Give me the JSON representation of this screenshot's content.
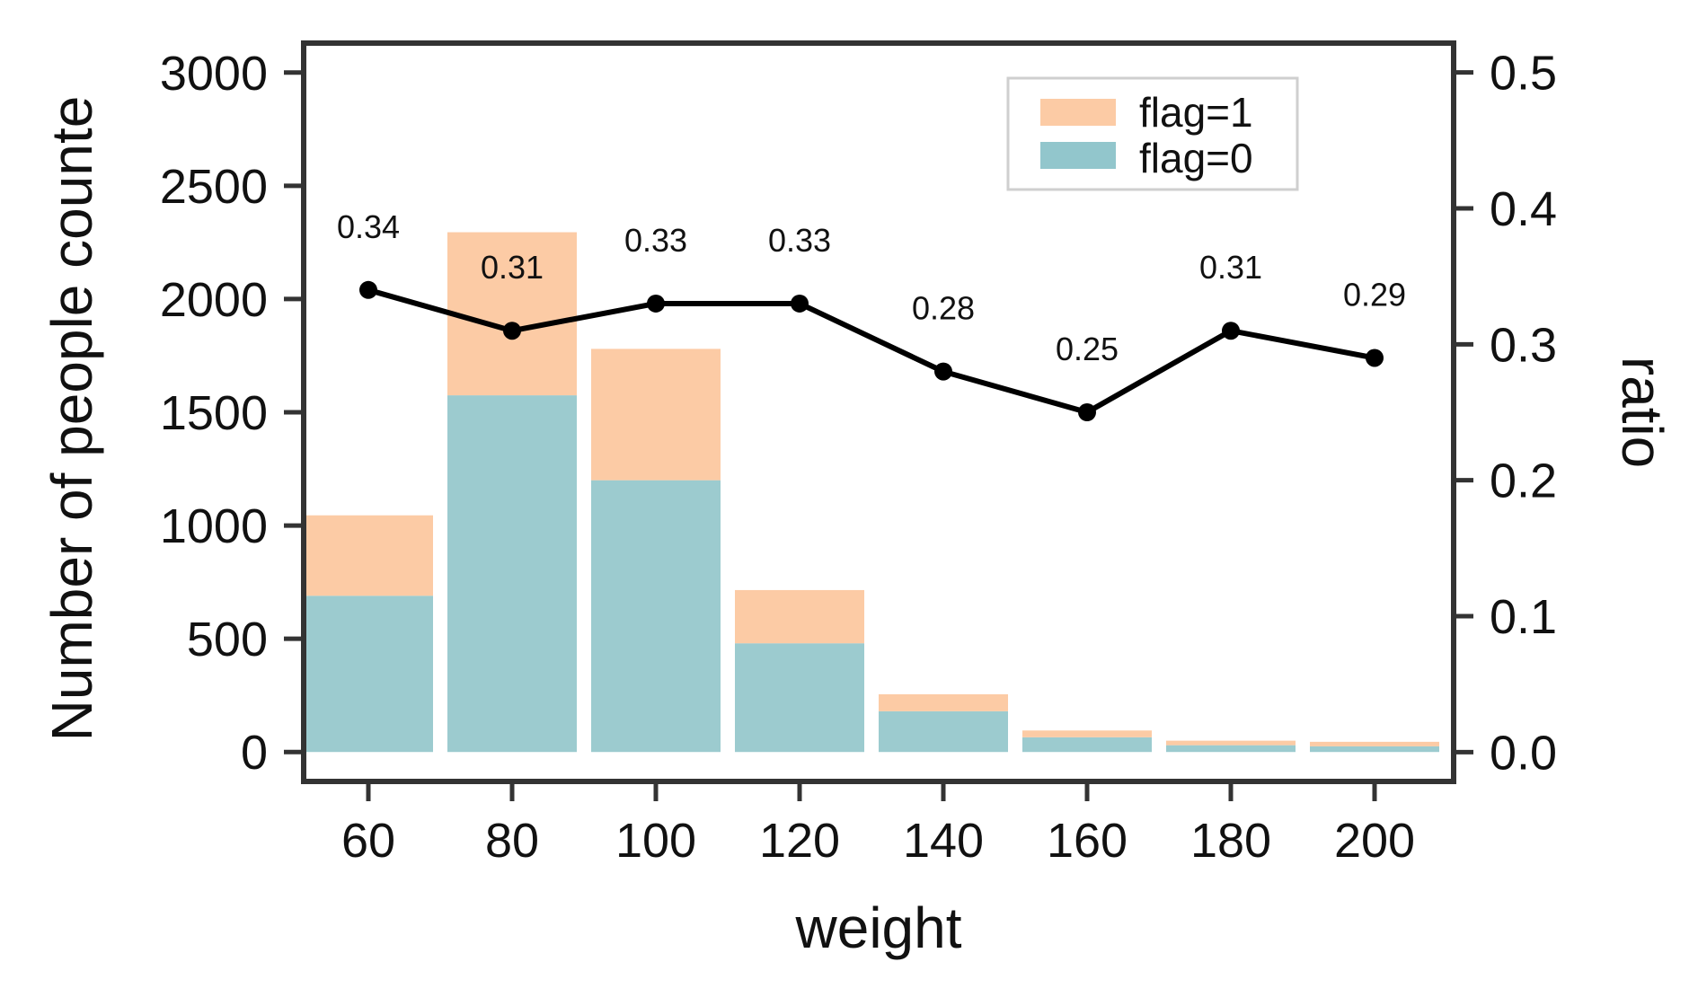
{
  "chart_data": {
    "type": "bar",
    "title": "",
    "xlabel": "weight",
    "ylabel": "Number of people counte",
    "y2label": "ratio",
    "categories": [
      "60",
      "80",
      "100",
      "120",
      "140",
      "160",
      "180",
      "200"
    ],
    "x": [
      60,
      80,
      100,
      120,
      140,
      160,
      180,
      200
    ],
    "stacked": true,
    "series": [
      {
        "name": "flag=0",
        "type": "bar",
        "axis": "left",
        "color": "#9ccbcf",
        "values": [
          690,
          1575,
          1200,
          480,
          180,
          65,
          30,
          25
        ]
      },
      {
        "name": "flag=1",
        "type": "bar",
        "axis": "left",
        "color": "#fccba5",
        "values": [
          355,
          720,
          580,
          235,
          75,
          30,
          20,
          20
        ]
      },
      {
        "name": "ratio",
        "type": "line",
        "axis": "right",
        "color": "#000000",
        "values": [
          0.34,
          0.31,
          0.33,
          0.33,
          0.28,
          0.25,
          0.31,
          0.29
        ],
        "data_labels": [
          "0.34",
          "0.31",
          "0.33",
          "0.33",
          "0.28",
          "0.25",
          "0.31",
          "0.29"
        ]
      }
    ],
    "x_ticks": [
      "60",
      "80",
      "100",
      "120",
      "140",
      "160",
      "180",
      "200"
    ],
    "y_ticks": [
      "0",
      "500",
      "1000",
      "1500",
      "2000",
      "2500",
      "3000"
    ],
    "y2_ticks": [
      "0.0",
      "0.1",
      "0.2",
      "0.3",
      "0.4",
      "0.5"
    ],
    "xlim": [
      51,
      211
    ],
    "ylim": [
      -130,
      3130
    ],
    "y2lim": [
      -0.0216,
      0.5216
    ],
    "grid": false,
    "legend": {
      "position": "top-right",
      "entries": [
        {
          "label": "flag=1",
          "color": "#fccba5"
        },
        {
          "label": "flag=0",
          "color": "#92c6cc"
        }
      ]
    },
    "colors": {
      "frame": "#333333",
      "line": "#000000"
    }
  }
}
